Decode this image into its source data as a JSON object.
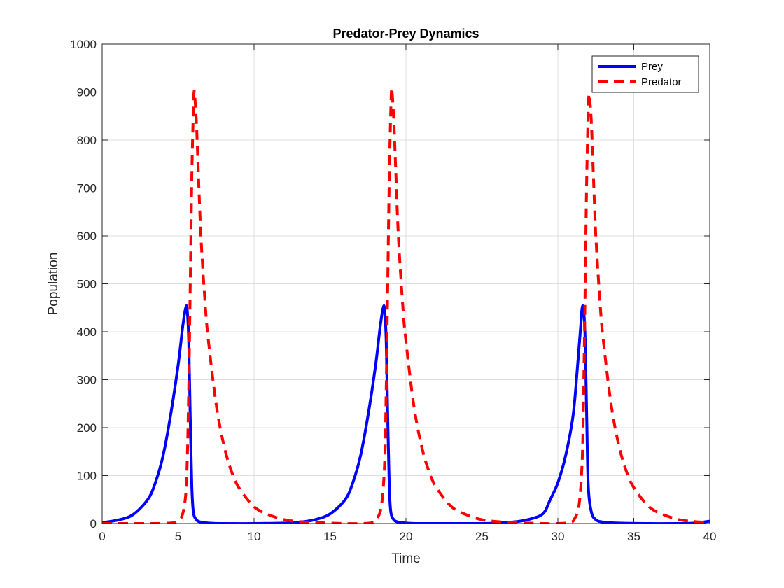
{
  "chart_data": {
    "type": "line",
    "title": "Predator-Prey Dynamics",
    "xlabel": "Time",
    "ylabel": "Population",
    "xlim": [
      0,
      40
    ],
    "ylim": [
      0,
      1000
    ],
    "xticks": [
      0,
      5,
      10,
      15,
      20,
      25,
      30,
      35,
      40
    ],
    "yticks": [
      0,
      100,
      200,
      300,
      400,
      500,
      600,
      700,
      800,
      900,
      1000
    ],
    "grid": true,
    "legend_position": "top-right",
    "series": [
      {
        "name": "Prey",
        "color": "#0000ff",
        "style": "solid",
        "x": [
          0,
          1,
          2,
          3,
          3.5,
          4,
          4.5,
          5,
          5.3,
          5.5,
          5.6,
          5.7,
          5.8,
          5.9,
          6.0,
          6.2,
          6.5,
          7,
          8,
          10,
          12,
          13,
          14,
          15,
          16,
          16.5,
          17,
          17.5,
          18,
          18.3,
          18.5,
          18.6,
          18.7,
          18.8,
          18.9,
          19.0,
          19.2,
          19.5,
          20,
          21,
          23,
          25,
          26,
          27,
          28,
          29,
          29.5,
          30,
          30.5,
          31,
          31.3,
          31.5,
          31.6,
          31.7,
          31.8,
          31.9,
          32.0,
          32.2,
          32.5,
          33,
          34,
          36,
          38,
          39,
          40
        ],
        "y": [
          2,
          7,
          18,
          50,
          85,
          140,
          225,
          330,
          410,
          450,
          445,
          380,
          220,
          80,
          25,
          8,
          3,
          1,
          0,
          0,
          1,
          3,
          8,
          20,
          50,
          85,
          140,
          225,
          330,
          410,
          450,
          445,
          380,
          220,
          80,
          25,
          8,
          3,
          1,
          0,
          0,
          0,
          1,
          3,
          8,
          20,
          50,
          85,
          140,
          225,
          330,
          410,
          450,
          445,
          380,
          220,
          80,
          25,
          8,
          3,
          1,
          0,
          0,
          1,
          5
        ]
      },
      {
        "name": "Predator",
        "color": "#ff0000",
        "style": "dashed",
        "x": [
          0,
          3,
          4.5,
          5.0,
          5.3,
          5.5,
          5.6,
          5.7,
          5.8,
          5.9,
          6.0,
          6.05,
          6.1,
          6.2,
          6.3,
          6.5,
          6.8,
          7.0,
          7.5,
          8,
          8.5,
          9,
          10,
          11,
          12,
          13,
          14,
          16,
          17,
          17.8,
          18.1,
          18.4,
          18.6,
          18.7,
          18.8,
          18.9,
          19.0,
          19.05,
          19.1,
          19.2,
          19.3,
          19.5,
          19.8,
          20,
          20.5,
          21,
          21.5,
          22,
          23,
          24,
          25,
          26,
          27,
          29,
          30,
          30.8,
          31.1,
          31.4,
          31.6,
          31.7,
          31.8,
          31.9,
          32.0,
          32.05,
          32.1,
          32.2,
          32.3,
          32.5,
          32.8,
          33,
          33.5,
          34,
          34.5,
          35,
          36,
          37,
          38,
          39,
          40
        ],
        "y": [
          0,
          0,
          1,
          5,
          20,
          60,
          130,
          280,
          500,
          720,
          860,
          900,
          890,
          840,
          760,
          600,
          450,
          380,
          250,
          165,
          110,
          75,
          35,
          18,
          8,
          4,
          2,
          0,
          0,
          2,
          10,
          40,
          130,
          280,
          500,
          720,
          860,
          905,
          895,
          840,
          760,
          600,
          450,
          380,
          250,
          165,
          110,
          75,
          35,
          18,
          8,
          4,
          2,
          0,
          0,
          2,
          10,
          40,
          130,
          280,
          500,
          720,
          860,
          895,
          885,
          840,
          760,
          600,
          450,
          380,
          250,
          165,
          110,
          75,
          35,
          18,
          8,
          4,
          2
        ]
      }
    ]
  }
}
